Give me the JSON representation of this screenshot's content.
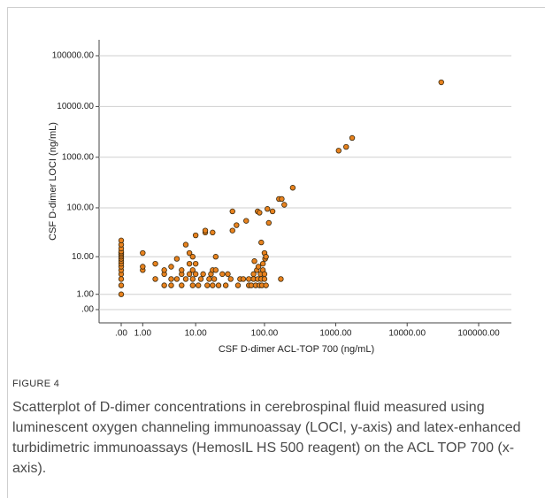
{
  "chart_data": {
    "type": "scatter",
    "xlabel": "CSF D-dimer ACL-TOP 700 (ng/mL)",
    "ylabel": "CSF D-dimer LOCI (ng/mL)",
    "xscale": "log1p",
    "yscale": "log1p",
    "color": "#e8821e",
    "xlim": [
      0,
      100000
    ],
    "ylim": [
      0,
      100000
    ],
    "xticks": [
      {
        "value": 0,
        "label": ".00"
      },
      {
        "value": 1,
        "label": "1.00"
      },
      {
        "value": 10,
        "label": "10.00"
      },
      {
        "value": 100,
        "label": "100.00"
      },
      {
        "value": 1000,
        "label": "1000.00"
      },
      {
        "value": 10000,
        "label": "10000.00"
      },
      {
        "value": 100000,
        "label": "100000.00"
      }
    ],
    "yticks": [
      {
        "value": 0,
        "label": ".00"
      },
      {
        "value": 1,
        "label": "1.00"
      },
      {
        "value": 10,
        "label": "10.00"
      },
      {
        "value": 100,
        "label": "100.00"
      },
      {
        "value": 1000,
        "label": "1000.00"
      },
      {
        "value": 10000,
        "label": "10000.00"
      },
      {
        "value": 100000,
        "label": "100000.00"
      }
    ],
    "grid": true,
    "x": [
      0,
      0,
      0,
      0,
      0,
      0,
      0,
      0,
      0,
      0,
      0,
      0,
      0,
      0,
      0,
      0,
      1,
      1,
      1,
      2,
      2,
      3,
      3,
      3,
      4,
      4,
      4,
      5,
      5,
      6,
      6,
      6,
      7,
      7,
      8,
      8,
      8,
      9,
      9,
      9,
      9,
      10,
      10,
      10,
      11,
      12,
      13,
      14,
      14,
      15,
      16,
      17,
      18,
      18,
      18,
      19,
      20,
      20,
      22,
      25,
      28,
      30,
      33,
      35,
      35,
      40,
      42,
      45,
      50,
      55,
      60,
      60,
      65,
      70,
      70,
      72,
      75,
      78,
      80,
      80,
      82,
      85,
      85,
      88,
      90,
      90,
      92,
      95,
      95,
      100,
      100,
      100,
      102,
      105,
      105,
      110,
      115,
      130,
      160,
      170,
      175,
      190,
      250,
      1100,
      1400,
      1700,
      30000
    ],
    "values": [
      1,
      2,
      3,
      4,
      5,
      6,
      7,
      8,
      9,
      10,
      11,
      12,
      13,
      15,
      18,
      22,
      5,
      6,
      12,
      3,
      7,
      4,
      5,
      2,
      3,
      6,
      2,
      3,
      9,
      2,
      4,
      5,
      3,
      18,
      4,
      7,
      12,
      2,
      3,
      5,
      10,
      4,
      7,
      28,
      2,
      3,
      4,
      32,
      35,
      2,
      3,
      4,
      2,
      5,
      32,
      3,
      5,
      10,
      2,
      4,
      2,
      4,
      3,
      85,
      35,
      45,
      2,
      3,
      3,
      55,
      2,
      3,
      2,
      4,
      3,
      8,
      2,
      5,
      85,
      3,
      6,
      2,
      80,
      4,
      3,
      20,
      2,
      5,
      7,
      12,
      3,
      4,
      9,
      2,
      10,
      95,
      50,
      85,
      150,
      3,
      150,
      115,
      250,
      1350,
      1600,
      2400,
      30000
    ]
  },
  "figure": {
    "label": "FIGURE 4",
    "caption": "Scatterplot of D-dimer concentrations in cerebrospinal fluid measured using luminescent oxygen channeling immunoassay (LOCI, y-axis) and latex-enhanced turbidimetric immunoassays (HemosIL HS 500 reagent) on the ACL TOP 700 (x-axis)."
  }
}
